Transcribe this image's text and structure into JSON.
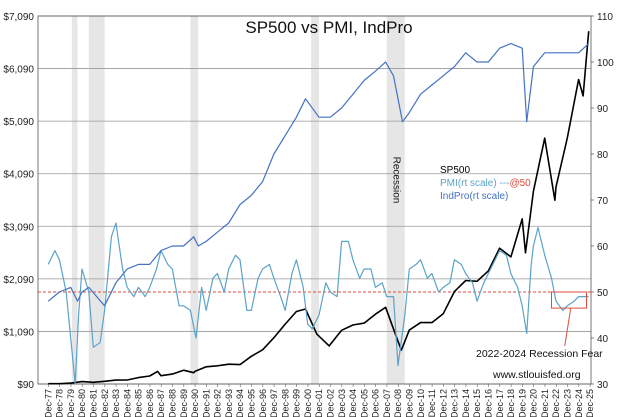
{
  "chart_data": {
    "type": "line",
    "title": "SP500 vs PMI, IndPro",
    "y_left": {
      "min": 90,
      "max": 7090,
      "ticks": [
        "$90",
        "$1,090",
        "$2,090",
        "$3,090",
        "$4,090",
        "$5,090",
        "$6,090",
        "$7,090"
      ]
    },
    "y_right": {
      "min": 30,
      "max": 110,
      "ticks": [
        "30",
        "40",
        "50",
        "60",
        "70",
        "80",
        "90",
        "100",
        "110"
      ]
    },
    "x": {
      "start_year": 1977,
      "end_year": 2025,
      "labels": [
        "Dec-77",
        "Dec-78",
        "Dec-79",
        "Dec-80",
        "Dec-81",
        "Dec-82",
        "Dec-83",
        "Dec-84",
        "Dec-85",
        "Dec-86",
        "Dec-87",
        "Dec-88",
        "Dec-89",
        "Dec-90",
        "Dec-91",
        "Dec-92",
        "Dec-93",
        "Dec-94",
        "Dec-95",
        "Dec-96",
        "Dec-97",
        "Dec-98",
        "Dec-99",
        "Dec-00",
        "Dec-01",
        "Dec-02",
        "Dec-03",
        "Dec-04",
        "Dec-05",
        "Dec-06",
        "Dec-07",
        "Dec-08",
        "Dec-09",
        "Dec-10",
        "Dec-11",
        "Dec-12",
        "Dec-13",
        "Dec-14",
        "Dec-15",
        "Dec-16",
        "Dec-17",
        "Dec-18",
        "Dec-19",
        "Dec-20",
        "Dec-21",
        "Dec-22",
        "Dec-23",
        "Dec-24",
        "Dec-25"
      ]
    },
    "recessions": [
      [
        1980.0,
        1980.5
      ],
      [
        1981.5,
        1982.9
      ],
      [
        1990.5,
        1991.2
      ],
      [
        2001.2,
        2001.9
      ],
      [
        2007.9,
        2009.5
      ]
    ],
    "recession_label": "Recession",
    "series": [
      {
        "name": "SP500",
        "axis": "left",
        "color": "#000000",
        "points": [
          [
            1977.9,
            95
          ],
          [
            1978.9,
            96
          ],
          [
            1979.9,
            108
          ],
          [
            1980.9,
            136
          ],
          [
            1981.9,
            123
          ],
          [
            1982.9,
            141
          ],
          [
            1983.9,
            165
          ],
          [
            1984.9,
            167
          ],
          [
            1985.9,
            211
          ],
          [
            1986.9,
            242
          ],
          [
            1987.6,
            330
          ],
          [
            1987.9,
            247
          ],
          [
            1988.9,
            278
          ],
          [
            1989.9,
            353
          ],
          [
            1990.8,
            305
          ],
          [
            1990.9,
            330
          ],
          [
            1991.9,
            417
          ],
          [
            1992.9,
            436
          ],
          [
            1993.9,
            466
          ],
          [
            1994.9,
            459
          ],
          [
            1995.9,
            616
          ],
          [
            1996.9,
            741
          ],
          [
            1997.9,
            970
          ],
          [
            1998.9,
            1229
          ],
          [
            1999.9,
            1469
          ],
          [
            2000.7,
            1517
          ],
          [
            2001.7,
            1040
          ],
          [
            2002.8,
            815
          ],
          [
            2003.9,
            1112
          ],
          [
            2004.9,
            1212
          ],
          [
            2005.9,
            1248
          ],
          [
            2006.9,
            1418
          ],
          [
            2007.8,
            1549
          ],
          [
            2008.9,
            903
          ],
          [
            2009.2,
            735
          ],
          [
            2009.9,
            1115
          ],
          [
            2010.9,
            1258
          ],
          [
            2011.9,
            1258
          ],
          [
            2012.9,
            1426
          ],
          [
            2013.9,
            1848
          ],
          [
            2014.9,
            2059
          ],
          [
            2015.9,
            2044
          ],
          [
            2016.9,
            2239
          ],
          [
            2017.9,
            2674
          ],
          [
            2018.9,
            2507
          ],
          [
            2019.9,
            3231
          ],
          [
            2020.2,
            2585
          ],
          [
            2020.9,
            3756
          ],
          [
            2021.9,
            4766
          ],
          [
            2022.8,
            3586
          ],
          [
            2022.9,
            3840
          ],
          [
            2023.9,
            4770
          ],
          [
            2024.9,
            5882
          ],
          [
            2025.3,
            5570
          ],
          [
            2025.8,
            6800
          ]
        ]
      },
      {
        "name": "PMI(rt scale) ---@50",
        "axis": "right",
        "color": "#5ba3c9",
        "points": [
          [
            1977.9,
            56
          ],
          [
            1978.5,
            59
          ],
          [
            1978.9,
            57
          ],
          [
            1979.5,
            50
          ],
          [
            1980.3,
            30
          ],
          [
            1980.6,
            45
          ],
          [
            1980.9,
            55
          ],
          [
            1981.5,
            50
          ],
          [
            1981.9,
            38
          ],
          [
            1982.5,
            39
          ],
          [
            1982.9,
            46
          ],
          [
            1983.5,
            62
          ],
          [
            1983.9,
            65
          ],
          [
            1984.5,
            55
          ],
          [
            1984.9,
            51
          ],
          [
            1985.5,
            49
          ],
          [
            1985.9,
            51
          ],
          [
            1986.5,
            49
          ],
          [
            1986.9,
            51
          ],
          [
            1987.5,
            55
          ],
          [
            1987.9,
            59
          ],
          [
            1988.5,
            56
          ],
          [
            1988.9,
            55
          ],
          [
            1989.5,
            47
          ],
          [
            1989.9,
            47
          ],
          [
            1990.5,
            46
          ],
          [
            1991.0,
            40
          ],
          [
            1991.5,
            51
          ],
          [
            1991.9,
            46
          ],
          [
            1992.5,
            53
          ],
          [
            1992.9,
            54
          ],
          [
            1993.5,
            50
          ],
          [
            1993.9,
            55
          ],
          [
            1994.5,
            58
          ],
          [
            1994.9,
            57
          ],
          [
            1995.5,
            46
          ],
          [
            1995.9,
            46
          ],
          [
            1996.5,
            53
          ],
          [
            1996.9,
            55
          ],
          [
            1997.5,
            56
          ],
          [
            1997.9,
            53
          ],
          [
            1998.5,
            49
          ],
          [
            1998.9,
            46
          ],
          [
            1999.5,
            54
          ],
          [
            1999.9,
            57
          ],
          [
            2000.5,
            51
          ],
          [
            2000.9,
            43
          ],
          [
            2001.3,
            42
          ],
          [
            2001.9,
            45
          ],
          [
            2002.5,
            52
          ],
          [
            2002.9,
            50
          ],
          [
            2003.5,
            49
          ],
          [
            2003.9,
            61
          ],
          [
            2004.5,
            61
          ],
          [
            2004.9,
            57
          ],
          [
            2005.5,
            53
          ],
          [
            2005.9,
            55
          ],
          [
            2006.5,
            55
          ],
          [
            2006.9,
            51
          ],
          [
            2007.5,
            52
          ],
          [
            2007.9,
            49
          ],
          [
            2008.5,
            49
          ],
          [
            2008.9,
            34
          ],
          [
            2009.5,
            45
          ],
          [
            2009.9,
            55
          ],
          [
            2010.5,
            56
          ],
          [
            2010.9,
            57
          ],
          [
            2011.5,
            53
          ],
          [
            2011.9,
            54
          ],
          [
            2012.5,
            50
          ],
          [
            2012.9,
            51
          ],
          [
            2013.5,
            52
          ],
          [
            2013.9,
            57
          ],
          [
            2014.5,
            56
          ],
          [
            2014.9,
            54
          ],
          [
            2015.5,
            52
          ],
          [
            2015.9,
            48
          ],
          [
            2016.5,
            52
          ],
          [
            2016.9,
            54
          ],
          [
            2017.5,
            57
          ],
          [
            2017.9,
            59
          ],
          [
            2018.5,
            58
          ],
          [
            2018.9,
            54
          ],
          [
            2019.5,
            51
          ],
          [
            2019.9,
            47
          ],
          [
            2020.3,
            41
          ],
          [
            2020.7,
            56
          ],
          [
            2020.9,
            60
          ],
          [
            2021.3,
            64
          ],
          [
            2021.9,
            58
          ],
          [
            2022.5,
            53
          ],
          [
            2022.9,
            48
          ],
          [
            2023.5,
            46
          ],
          [
            2023.9,
            47
          ],
          [
            2024.5,
            48
          ],
          [
            2024.9,
            49
          ],
          [
            2025.3,
            49
          ],
          [
            2025.8,
            49
          ]
        ]
      },
      {
        "name": "IndPro(rt scale)",
        "axis": "right",
        "color": "#4472c4",
        "points": [
          [
            1977.9,
            48
          ],
          [
            1978.9,
            50
          ],
          [
            1979.9,
            51
          ],
          [
            1980.5,
            48
          ],
          [
            1980.9,
            50
          ],
          [
            1981.5,
            51
          ],
          [
            1982.9,
            47
          ],
          [
            1983.9,
            52
          ],
          [
            1984.9,
            55
          ],
          [
            1985.9,
            56
          ],
          [
            1986.9,
            56
          ],
          [
            1987.9,
            59
          ],
          [
            1988.9,
            60
          ],
          [
            1989.9,
            60
          ],
          [
            1990.8,
            62
          ],
          [
            1991.2,
            60
          ],
          [
            1991.9,
            61
          ],
          [
            1992.9,
            63
          ],
          [
            1993.9,
            65
          ],
          [
            1994.9,
            69
          ],
          [
            1995.9,
            71
          ],
          [
            1996.9,
            74
          ],
          [
            1997.9,
            80
          ],
          [
            1998.9,
            84
          ],
          [
            1999.9,
            88
          ],
          [
            2000.7,
            92
          ],
          [
            2001.9,
            88
          ],
          [
            2002.9,
            88
          ],
          [
            2003.9,
            90
          ],
          [
            2004.9,
            93
          ],
          [
            2005.9,
            96
          ],
          [
            2006.9,
            98
          ],
          [
            2007.8,
            100
          ],
          [
            2008.5,
            97
          ],
          [
            2009.3,
            87
          ],
          [
            2009.9,
            89
          ],
          [
            2010.9,
            93
          ],
          [
            2011.9,
            95
          ],
          [
            2012.9,
            97
          ],
          [
            2013.9,
            99
          ],
          [
            2014.9,
            102
          ],
          [
            2015.9,
            100
          ],
          [
            2016.9,
            100
          ],
          [
            2017.9,
            103
          ],
          [
            2018.9,
            104
          ],
          [
            2019.9,
            103
          ],
          [
            2020.3,
            87
          ],
          [
            2020.9,
            99
          ],
          [
            2021.9,
            102
          ],
          [
            2022.9,
            102
          ],
          [
            2023.9,
            102
          ],
          [
            2024.9,
            102
          ],
          [
            2025.8,
            104
          ]
        ]
      }
    ],
    "legend": {
      "position": "center-right",
      "entries": [
        {
          "text": "SP500",
          "color": "#000000"
        },
        {
          "text": "PMI(rt scale) ---@50",
          "text_main": "PMI(rt scale) ---",
          "text_accent": "@50",
          "color": "#5ba3c9",
          "accent_color": "#e04b3a"
        },
        {
          "text": "IndPro(rt scale)",
          "color": "#4472c4"
        }
      ]
    },
    "reference_line": {
      "axis": "right",
      "value": 50,
      "color": "#e04b3a",
      "style": "dashed"
    },
    "annotations": {
      "recession_fear": "2022-2024 Recession Fear",
      "recession_fear_range": [
        2022.5,
        2025.6
      ],
      "source": "www.stlouisfed.org"
    }
  }
}
